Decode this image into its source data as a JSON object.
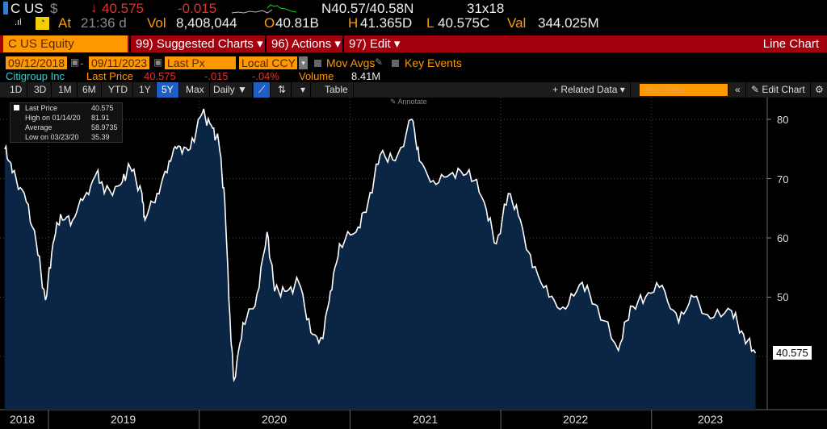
{
  "quote": {
    "ticker": "C US",
    "currency": "$",
    "last": "40.575",
    "change": "-0.015",
    "bid_ask": "N40.57/40.58N",
    "size": "31x18",
    "time_label": "At",
    "time": "21:36 d",
    "vol_label": "Vol",
    "vol": "8,408,044",
    "open_label": "O",
    "open": "40.81B",
    "high_label": "H",
    "high": "41.365D",
    "low_label": "L",
    "low": "40.575C",
    "val_label": "Val",
    "val": "344.025M"
  },
  "bar": {
    "security": "C US Equity",
    "suggested": "99) Suggested Charts",
    "actions": "96) Actions",
    "edit": "97) Edit",
    "chart_type": "Line Chart"
  },
  "controls": {
    "start": "09/12/2018",
    "end": "09/11/2023",
    "field": "Last Px",
    "currency": "Local CCY",
    "mov_avgs": "Mov Avgs",
    "key_events": "Key Events"
  },
  "info": {
    "name": "Citigroup Inc",
    "last_label": "Last Price",
    "last": "40.575",
    "chg": "-.015",
    "pct": "-.04%",
    "vol_label": "Volume",
    "vol": "8.41M"
  },
  "toolbar": {
    "periods": [
      "1D",
      "3D",
      "1M",
      "6M",
      "YTD",
      "1Y",
      "5Y",
      "Max"
    ],
    "active": "5Y",
    "freq": "Daily ▼",
    "table": "Table",
    "related": "+ Related Data ▾",
    "add_data_placeholder": "Add Data",
    "edit_chart": "Edit Chart",
    "annotate": "Annotate"
  },
  "legend": {
    "rows": [
      [
        "Last Price",
        "40.575"
      ],
      [
        "High on 01/14/20",
        "81.91"
      ],
      [
        "Average",
        "58.9735"
      ],
      [
        "Low on 03/23/20",
        "35.39"
      ]
    ]
  },
  "chart_data": {
    "type": "area",
    "series": [
      {
        "name": "Last Price",
        "color": "#ffffff",
        "fill": "#0b2545",
        "points": [
          [
            2018.71,
            75
          ],
          [
            2018.76,
            71
          ],
          [
            2018.84,
            67.5
          ],
          [
            2018.92,
            59
          ],
          [
            2018.98,
            49.5
          ],
          [
            2019.03,
            59
          ],
          [
            2019.08,
            64
          ],
          [
            2019.16,
            63
          ],
          [
            2019.24,
            67
          ],
          [
            2019.32,
            71
          ],
          [
            2019.37,
            67.5
          ],
          [
            2019.48,
            69
          ],
          [
            2019.54,
            72
          ],
          [
            2019.62,
            67.5
          ],
          [
            2019.64,
            63
          ],
          [
            2019.72,
            67.5
          ],
          [
            2019.8,
            73
          ],
          [
            2019.86,
            75.5
          ],
          [
            2019.94,
            75
          ],
          [
            2020.02,
            81
          ],
          [
            2020.08,
            79
          ],
          [
            2020.13,
            76
          ],
          [
            2020.17,
            66
          ],
          [
            2020.21,
            43
          ],
          [
            2020.23,
            36
          ],
          [
            2020.29,
            45.7
          ],
          [
            2020.37,
            48.5
          ],
          [
            2020.45,
            61
          ],
          [
            2020.5,
            51
          ],
          [
            2020.58,
            51
          ],
          [
            2020.66,
            52.5
          ],
          [
            2020.74,
            44
          ],
          [
            2020.82,
            43
          ],
          [
            2020.87,
            51
          ],
          [
            2020.93,
            59
          ],
          [
            2021.04,
            61
          ],
          [
            2021.12,
            66
          ],
          [
            2021.2,
            74
          ],
          [
            2021.3,
            73
          ],
          [
            2021.41,
            80
          ],
          [
            2021.46,
            73
          ],
          [
            2021.57,
            69
          ],
          [
            2021.68,
            71
          ],
          [
            2021.79,
            71.5
          ],
          [
            2021.89,
            66
          ],
          [
            2021.97,
            59
          ],
          [
            2022.05,
            67.5
          ],
          [
            2022.13,
            63
          ],
          [
            2022.21,
            55
          ],
          [
            2022.32,
            50
          ],
          [
            2022.43,
            48
          ],
          [
            2022.54,
            52.5
          ],
          [
            2022.64,
            48.5
          ],
          [
            2022.78,
            41
          ],
          [
            2022.86,
            48.5
          ],
          [
            2022.96,
            50
          ],
          [
            2023.07,
            52
          ],
          [
            2023.18,
            45.7
          ],
          [
            2023.28,
            50
          ],
          [
            2023.39,
            46.4
          ],
          [
            2023.53,
            47.7
          ],
          [
            2023.61,
            43.7
          ],
          [
            2023.69,
            40.575
          ]
        ]
      }
    ],
    "yticks": [
      "80",
      "70",
      "60",
      "50"
    ],
    "ytick_values": [
      80,
      70,
      60,
      50
    ],
    "xticks": [
      "2018",
      "2019",
      "2020",
      "2021",
      "2022",
      "2023"
    ],
    "last_label": "40.575"
  }
}
